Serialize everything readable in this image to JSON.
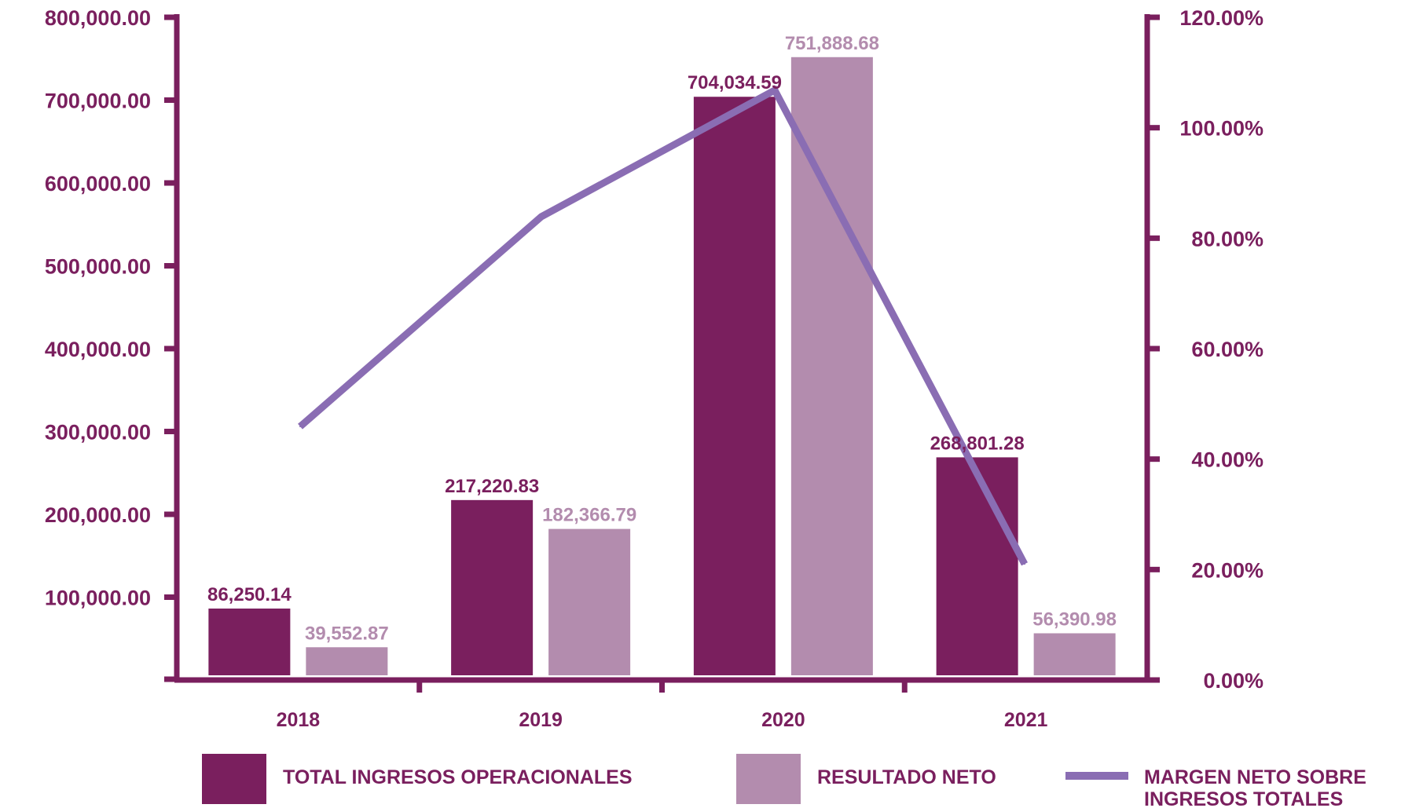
{
  "chart_data": {
    "type": "bar",
    "categories": [
      "2018",
      "2019",
      "2020",
      "2021"
    ],
    "series": [
      {
        "name": "TOTAL INGRESOS OPERACIONALES",
        "type": "bar",
        "axis": "left",
        "color": "#7a1f5e",
        "values": [
          86250.14,
          217220.83,
          704034.59,
          268801.28
        ],
        "labels": [
          "86,250.14",
          "217,220.83",
          "704,034.59",
          "268,801.28"
        ]
      },
      {
        "name": "RESULTADO NETO",
        "type": "bar",
        "axis": "left",
        "color": "#b38cae",
        "values": [
          39552.87,
          182366.79,
          751888.68,
          56390.98
        ],
        "labels": [
          "39,552.87",
          "182,366.79",
          "751,888.68",
          "56,390.98"
        ]
      },
      {
        "name": "MARGEN NETO SOBRE INGRESOS TOTALES",
        "type": "line",
        "axis": "right",
        "color": "#8a6db3",
        "values": [
          45.9,
          83.9,
          106.8,
          21.0
        ]
      }
    ],
    "y_left": {
      "min": 0,
      "max": 800000,
      "ticks": [
        100000,
        200000,
        300000,
        400000,
        500000,
        600000,
        700000,
        800000
      ],
      "tick_labels": [
        "100,000.00",
        "200,000.00",
        "300,000.00",
        "400,000.00",
        "500,000.00",
        "600,000.00",
        "700,000.00",
        "800,000.00"
      ]
    },
    "y_right": {
      "min": 0,
      "max": 120,
      "ticks": [
        0,
        20,
        40,
        60,
        80,
        100,
        120
      ],
      "tick_labels": [
        "0.00%",
        "20.00%",
        "40.00%",
        "60.00%",
        "80.00%",
        "100.00%",
        "120.00%"
      ]
    },
    "legend": {
      "placement": "bottom",
      "items": [
        {
          "label": "TOTAL INGRESOS OPERACIONALES",
          "swatch": "box",
          "color": "#7a1f5e"
        },
        {
          "label": "RESULTADO NETO",
          "swatch": "box",
          "color": "#b38cae"
        },
        {
          "label_lines": [
            "MARGEN NETO SOBRE",
            "INGRESOS TOTALES"
          ],
          "swatch": "line",
          "color": "#8a6db3"
        }
      ]
    },
    "axis_color": "#7a1f5e",
    "grid": false
  }
}
